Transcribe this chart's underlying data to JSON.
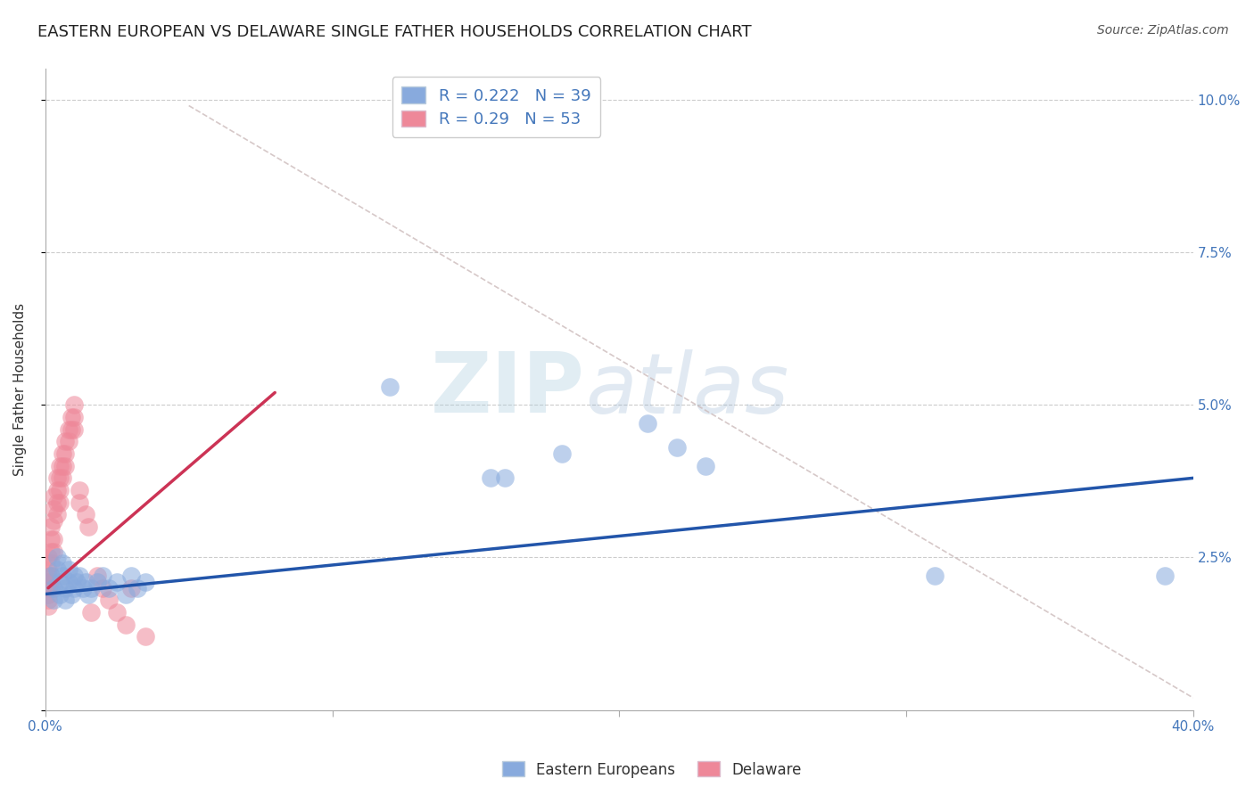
{
  "title": "EASTERN EUROPEAN VS DELAWARE SINGLE FATHER HOUSEHOLDS CORRELATION CHART",
  "source": "Source: ZipAtlas.com",
  "ylabel": "Single Father Households",
  "xlim": [
    0.0,
    0.4
  ],
  "ylim": [
    0.0,
    0.105
  ],
  "yticks": [
    0.0,
    0.025,
    0.05,
    0.075,
    0.1
  ],
  "ytick_labels": [
    "",
    "2.5%",
    "5.0%",
    "7.5%",
    "10.0%"
  ],
  "xticks": [
    0.0,
    0.1,
    0.2,
    0.3,
    0.4
  ],
  "xtick_labels": [
    "0.0%",
    "",
    "",
    "",
    "40.0%"
  ],
  "blue_R": 0.222,
  "blue_N": 39,
  "pink_R": 0.29,
  "pink_N": 53,
  "blue_color": "#88AADD",
  "pink_color": "#EE8899",
  "blue_line_color": "#2255AA",
  "pink_line_color": "#CC3355",
  "ref_line_color": "#CCBBBB",
  "watermark_zip_color": "#AABBCC",
  "watermark_atlas_color": "#AABBCC",
  "blue_scatter_x": [
    0.002,
    0.003,
    0.003,
    0.004,
    0.004,
    0.005,
    0.005,
    0.006,
    0.006,
    0.007,
    0.007,
    0.008,
    0.008,
    0.009,
    0.01,
    0.01,
    0.011,
    0.012,
    0.013,
    0.014,
    0.015,
    0.016,
    0.018,
    0.02,
    0.022,
    0.025,
    0.028,
    0.03,
    0.032,
    0.035,
    0.12,
    0.155,
    0.16,
    0.18,
    0.21,
    0.22,
    0.23,
    0.31,
    0.39
  ],
  "blue_scatter_y": [
    0.022,
    0.02,
    0.018,
    0.025,
    0.023,
    0.021,
    0.019,
    0.024,
    0.022,
    0.02,
    0.018,
    0.023,
    0.021,
    0.019,
    0.022,
    0.02,
    0.021,
    0.022,
    0.02,
    0.021,
    0.019,
    0.02,
    0.021,
    0.022,
    0.02,
    0.021,
    0.019,
    0.022,
    0.02,
    0.021,
    0.053,
    0.038,
    0.038,
    0.042,
    0.047,
    0.043,
    0.04,
    0.022,
    0.022
  ],
  "pink_scatter_x": [
    0.001,
    0.001,
    0.001,
    0.001,
    0.001,
    0.001,
    0.001,
    0.001,
    0.002,
    0.002,
    0.002,
    0.002,
    0.002,
    0.002,
    0.002,
    0.003,
    0.003,
    0.003,
    0.003,
    0.003,
    0.004,
    0.004,
    0.004,
    0.004,
    0.005,
    0.005,
    0.005,
    0.005,
    0.006,
    0.006,
    0.006,
    0.007,
    0.007,
    0.007,
    0.008,
    0.008,
    0.009,
    0.009,
    0.01,
    0.01,
    0.01,
    0.012,
    0.012,
    0.014,
    0.015,
    0.016,
    0.018,
    0.02,
    0.022,
    0.025,
    0.028,
    0.03,
    0.035
  ],
  "pink_scatter_y": [
    0.025,
    0.023,
    0.022,
    0.021,
    0.02,
    0.019,
    0.018,
    0.017,
    0.03,
    0.028,
    0.026,
    0.024,
    0.022,
    0.021,
    0.02,
    0.035,
    0.033,
    0.031,
    0.028,
    0.026,
    0.038,
    0.036,
    0.034,
    0.032,
    0.04,
    0.038,
    0.036,
    0.034,
    0.042,
    0.04,
    0.038,
    0.044,
    0.042,
    0.04,
    0.046,
    0.044,
    0.048,
    0.046,
    0.05,
    0.048,
    0.046,
    0.036,
    0.034,
    0.032,
    0.03,
    0.016,
    0.022,
    0.02,
    0.018,
    0.016,
    0.014,
    0.02,
    0.012
  ],
  "pink_line_x": [
    0.001,
    0.08
  ],
  "pink_line_y": [
    0.02,
    0.052
  ],
  "blue_line_x": [
    0.0,
    0.4
  ],
  "blue_line_y": [
    0.019,
    0.038
  ],
  "ref_line_x": [
    0.05,
    0.4
  ],
  "ref_line_y": [
    0.099,
    0.002
  ],
  "title_fontsize": 13,
  "axis_label_fontsize": 11,
  "tick_fontsize": 11,
  "legend_fontsize": 13
}
